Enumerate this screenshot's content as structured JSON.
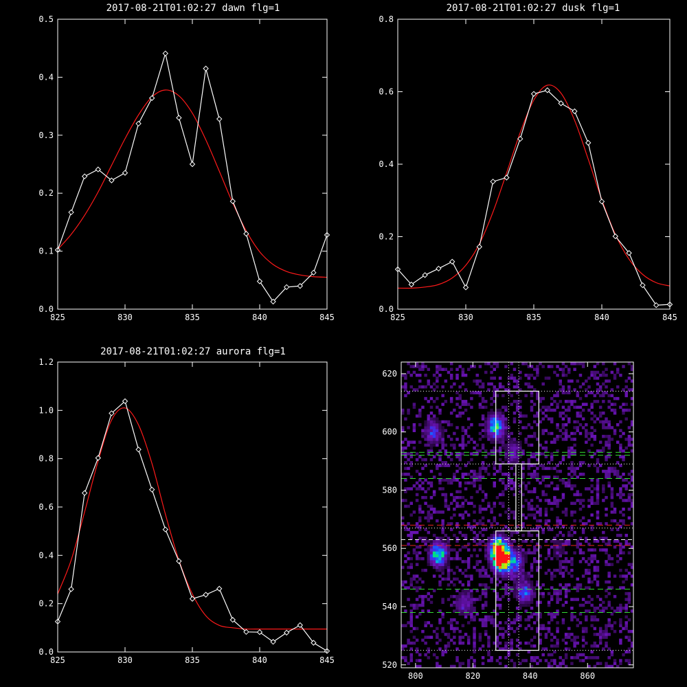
{
  "window_size": "1000x1000",
  "colors": {
    "background": "#000000",
    "axes": "#ffffff",
    "data_line": "#ffffff",
    "fit_line": "#ff1a1a",
    "green_dashed": "#33dd33",
    "red_dashed": "#ee2222"
  },
  "chart_data": [
    {
      "type": "line",
      "title": "2017-08-21T01:02:27 dawn flg=1",
      "xlim": [
        825,
        845
      ],
      "ylim": [
        0.0,
        0.5
      ],
      "xticks": [
        825,
        830,
        835,
        840,
        845
      ],
      "xtick_labels": [
        "825",
        "830",
        "835",
        "840",
        "845"
      ],
      "yticks": [
        0.0,
        0.1,
        0.2,
        0.3,
        0.4,
        0.5
      ],
      "ytick_labels": [
        "0.0",
        "0.1",
        "0.2",
        "0.3",
        "0.4",
        "0.5"
      ],
      "series": [
        {
          "marker": "diamond",
          "x": [
            825,
            826,
            827,
            828,
            829,
            830,
            831,
            832,
            833,
            834,
            835,
            836,
            837,
            838,
            839,
            840,
            841,
            842,
            843,
            844,
            845
          ],
          "y": [
            0.102,
            0.167,
            0.229,
            0.241,
            0.222,
            0.235,
            0.32,
            0.364,
            0.441,
            0.33,
            0.25,
            0.415,
            0.328,
            0.186,
            0.13,
            0.048,
            0.013,
            0.038,
            0.04,
            0.063,
            0.128
          ]
        },
        {
          "fit": "gaussian",
          "x": [
            825,
            826,
            827,
            828,
            829,
            830,
            831,
            832,
            833,
            834,
            835,
            836,
            837,
            838,
            839,
            840,
            841,
            842,
            843,
            844,
            845
          ],
          "y": [
            0.103,
            0.129,
            0.162,
            0.202,
            0.248,
            0.294,
            0.335,
            0.366,
            0.378,
            0.368,
            0.338,
            0.292,
            0.238,
            0.183,
            0.135,
            0.099,
            0.077,
            0.065,
            0.059,
            0.056,
            0.055
          ]
        }
      ]
    },
    {
      "type": "line",
      "title": "2017-08-21T01:02:27 dusk flg=1",
      "xlim": [
        825,
        845
      ],
      "ylim": [
        0.0,
        0.8
      ],
      "xticks": [
        825,
        830,
        835,
        840,
        845
      ],
      "xtick_labels": [
        "825",
        "830",
        "835",
        "840",
        "845"
      ],
      "yticks": [
        0.0,
        0.2,
        0.4,
        0.6,
        0.8
      ],
      "ytick_labels": [
        "0.0",
        "0.2",
        "0.4",
        "0.6",
        "0.8"
      ],
      "series": [
        {
          "marker": "diamond",
          "x": [
            825,
            826,
            827,
            828,
            829,
            830,
            831,
            832,
            833,
            834,
            835,
            836,
            837,
            838,
            839,
            840,
            841,
            842,
            843,
            844,
            845
          ],
          "y": [
            0.11,
            0.068,
            0.094,
            0.112,
            0.131,
            0.06,
            0.172,
            0.352,
            0.363,
            0.47,
            0.594,
            0.604,
            0.568,
            0.546,
            0.459,
            0.297,
            0.201,
            0.155,
            0.066,
            0.011,
            0.013
          ]
        },
        {
          "fit": "gaussian",
          "x": [
            825,
            826,
            827,
            828,
            829,
            830,
            831,
            832,
            833,
            834,
            835,
            836,
            837,
            838,
            839,
            840,
            841,
            842,
            843,
            844,
            845
          ],
          "y": [
            0.058,
            0.058,
            0.061,
            0.068,
            0.086,
            0.121,
            0.18,
            0.268,
            0.376,
            0.487,
            0.577,
            0.618,
            0.596,
            0.521,
            0.414,
            0.302,
            0.206,
            0.138,
            0.096,
            0.073,
            0.064
          ]
        }
      ]
    },
    {
      "type": "line",
      "title": "2017-08-21T01:02:27 aurora flg=1",
      "xlim": [
        825,
        845
      ],
      "ylim": [
        0.0,
        1.2
      ],
      "xticks": [
        825,
        830,
        835,
        840,
        845
      ],
      "xtick_labels": [
        "825",
        "830",
        "835",
        "840",
        "845"
      ],
      "yticks": [
        0.0,
        0.2,
        0.4,
        0.6,
        0.8,
        1.0,
        1.2
      ],
      "ytick_labels": [
        "0.0",
        "0.2",
        "0.4",
        "0.6",
        "0.8",
        "1.0",
        "1.2"
      ],
      "series": [
        {
          "marker": "diamond",
          "x": [
            825,
            826,
            827,
            828,
            829,
            830,
            831,
            832,
            833,
            834,
            835,
            836,
            837,
            838,
            839,
            840,
            841,
            842,
            843,
            844,
            845
          ],
          "y": [
            0.126,
            0.26,
            0.658,
            0.803,
            0.988,
            1.038,
            0.838,
            0.672,
            0.507,
            0.376,
            0.22,
            0.237,
            0.262,
            0.133,
            0.083,
            0.082,
            0.042,
            0.08,
            0.111,
            0.038,
            0.004
          ]
        },
        {
          "fit": "gaussian",
          "x": [
            825,
            826,
            827,
            828,
            829,
            830,
            831,
            832,
            833,
            834,
            835,
            836,
            837,
            838,
            839,
            840,
            841,
            842,
            843,
            844,
            845
          ],
          "y": [
            0.24,
            0.38,
            0.58,
            0.79,
            0.96,
            1.01,
            0.94,
            0.78,
            0.57,
            0.38,
            0.24,
            0.15,
            0.11,
            0.1,
            0.095,
            0.095,
            0.095,
            0.095,
            0.095,
            0.095,
            0.095
          ]
        }
      ]
    },
    {
      "type": "heatmap",
      "title": "",
      "xlim": [
        795,
        876
      ],
      "ylim": [
        519,
        624
      ],
      "xticks": [
        800,
        820,
        840,
        860
      ],
      "xtick_labels": [
        "800",
        "820",
        "840",
        "860"
      ],
      "yticks": [
        520,
        540,
        560,
        580,
        600,
        620
      ],
      "ytick_labels": [
        "520",
        "540",
        "560",
        "580",
        "600",
        "620"
      ],
      "hot_spots": [
        {
          "x": 830,
          "y": 556,
          "intensity": 1.0
        },
        {
          "x": 829,
          "y": 560,
          "intensity": 0.8
        },
        {
          "x": 808,
          "y": 558,
          "intensity": 0.75
        },
        {
          "x": 828,
          "y": 602,
          "intensity": 0.7
        },
        {
          "x": 806,
          "y": 600,
          "intensity": 0.45
        },
        {
          "x": 838,
          "y": 545,
          "intensity": 0.5
        },
        {
          "x": 835,
          "y": 555,
          "intensity": 0.45
        },
        {
          "x": 817,
          "y": 541,
          "intensity": 0.4
        },
        {
          "x": 834,
          "y": 593,
          "intensity": 0.35
        },
        {
          "x": 850,
          "y": 560,
          "intensity": 0.2
        }
      ],
      "boxes": [
        {
          "x0": 828,
          "x1": 843,
          "y0": 589,
          "y1": 614
        },
        {
          "x0": 835,
          "x1": 837,
          "y0": 566,
          "y1": 589
        },
        {
          "x0": 828,
          "x1": 843,
          "y0": 525,
          "y1": 566
        }
      ],
      "vlines_dotted": [
        832.5,
        836
      ],
      "hlines_dotted_white": [
        614,
        589,
        567,
        525
      ],
      "hlines_dashed_white": [
        563
      ],
      "hlines_dashed_green": [
        593,
        592,
        584,
        546,
        538
      ],
      "hlines_dashed_red": [
        568,
        561
      ]
    }
  ]
}
